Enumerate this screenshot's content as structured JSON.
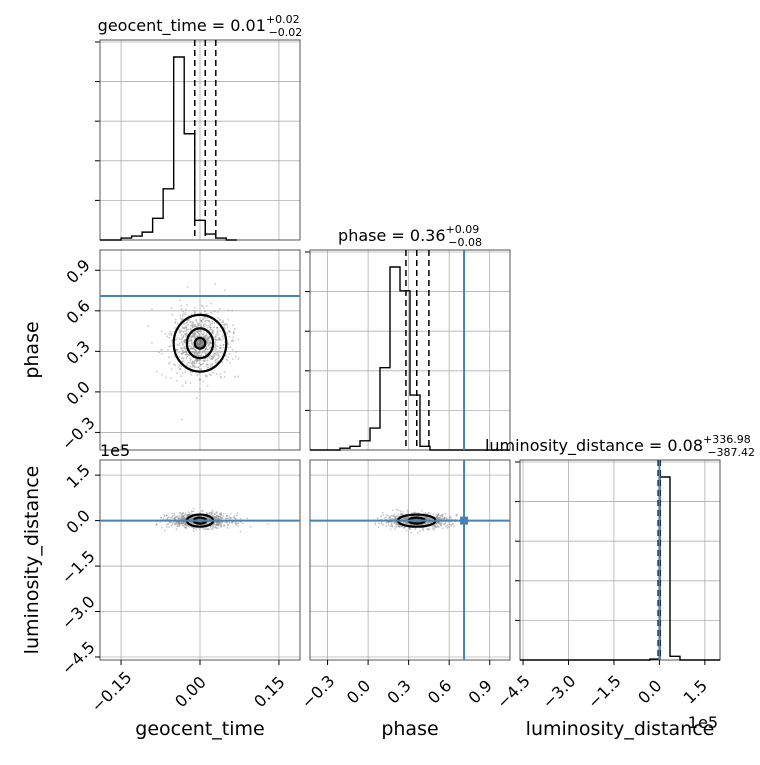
{
  "figure": {
    "type": "corner_plot",
    "truth_color": "#4682b4",
    "contour_color": "#000000",
    "scatter_color": "#8c8c8c"
  },
  "chart_data": [
    {
      "type": "histogram",
      "parameter": "geocent_time",
      "title": {
        "base": "geocent_time = 0.01",
        "sup": "+0.02",
        "sub": "−0.02"
      },
      "xlim": [
        -0.19,
        0.19
      ],
      "bin_width": 0.02,
      "bin_edges_start": -0.17,
      "counts": [
        0.0,
        0.01,
        0.02,
        0.04,
        0.11,
        0.26,
        0.93,
        0.54,
        0.1,
        0.03,
        0.01,
        0.0
      ],
      "quantile_lines": [
        -0.01,
        0.01,
        0.03
      ]
    },
    {
      "type": "histogram",
      "parameter": "phase",
      "title": {
        "base": "phase = 0.36",
        "sup": "+0.09",
        "sub": "−0.08"
      },
      "xlim": [
        -0.43,
        1.05
      ],
      "bin_width": 0.074,
      "bin_edges_start": -0.43,
      "counts": [
        0,
        0,
        0,
        0.01,
        0.02,
        0.05,
        0.12,
        0.45,
        1.0,
        0.87,
        0.3,
        0.02,
        0,
        0,
        0,
        0,
        0,
        0,
        0,
        0
      ],
      "quantile_lines": [
        0.28,
        0.36,
        0.45
      ],
      "truth": 0.71
    },
    {
      "type": "histogram",
      "parameter": "luminosity_distance",
      "title": {
        "base": "luminosity_distance = 0.08",
        "sup": "+336.98",
        "sub": "−387.42"
      },
      "offset_label": "1e5",
      "xlim": [
        -4.6,
        2.0
      ],
      "bin_width": 0.33,
      "bin_edges_start": -4.6,
      "counts": [
        0,
        0,
        0,
        0,
        0,
        0,
        0,
        0,
        0,
        0,
        0,
        0,
        0,
        0.005,
        0.98,
        0.02,
        0,
        0,
        0,
        0
      ],
      "quantile_lines": [
        -0.04,
        0.0,
        0.03
      ],
      "truth": 0.0
    },
    {
      "type": "scatter_contour",
      "x_parameter": "geocent_time",
      "y_parameter": "phase",
      "xlim": [
        -0.19,
        0.19
      ],
      "ylim": [
        -0.43,
        1.05
      ],
      "center": [
        0.0,
        0.36
      ],
      "spread": [
        0.028,
        0.12
      ],
      "contour_levels": [
        {
          "rx": 0.05,
          "ry": 0.21
        },
        {
          "rx": 0.025,
          "ry": 0.11
        },
        {
          "rx": 0.01,
          "ry": 0.04
        }
      ],
      "truth_y": 0.71
    },
    {
      "type": "scatter_contour",
      "x_parameter": "geocent_time",
      "y_parameter": "luminosity_distance",
      "xlim": [
        -0.19,
        0.19
      ],
      "ylim": [
        -4.6,
        2.0
      ],
      "offset_label": "1e5",
      "center": [
        0.0,
        0.0
      ],
      "spread": [
        0.03,
        0.12
      ],
      "contour_levels": [
        {
          "rx": 0.025,
          "ry": 0.2
        },
        {
          "rx": 0.012,
          "ry": 0.1
        }
      ],
      "truth_y": 0.0
    },
    {
      "type": "scatter_contour",
      "x_parameter": "phase",
      "y_parameter": "luminosity_distance",
      "xlim": [
        -0.43,
        1.05
      ],
      "ylim": [
        -4.6,
        2.0
      ],
      "center": [
        0.36,
        0.0
      ],
      "spread": [
        0.12,
        0.12
      ],
      "contour_levels": [
        {
          "rx": 0.14,
          "ry": 0.2
        },
        {
          "rx": 0.06,
          "ry": 0.1
        }
      ],
      "truth_x": 0.71,
      "truth_y": 0.0
    }
  ],
  "axes": {
    "geocent_time": {
      "label": "geocent_time",
      "ticks": [
        -0.15,
        0.0,
        0.15
      ],
      "tick_labels": [
        "−0.15",
        "0.00",
        "0.15"
      ]
    },
    "phase": {
      "label": "phase",
      "ticks": [
        -0.3,
        0.0,
        0.3,
        0.6,
        0.9
      ],
      "tick_labels": [
        "−0.3",
        "0.0",
        "0.3",
        "0.6",
        "0.9"
      ]
    },
    "luminosity_distance": {
      "label": "luminosity_distance",
      "ticks": [
        -4.5,
        -3.0,
        -1.5,
        0.0,
        1.5
      ],
      "tick_labels": [
        "−4.5",
        "−3.0",
        "−1.5",
        "0.0",
        "1.5"
      ]
    }
  }
}
